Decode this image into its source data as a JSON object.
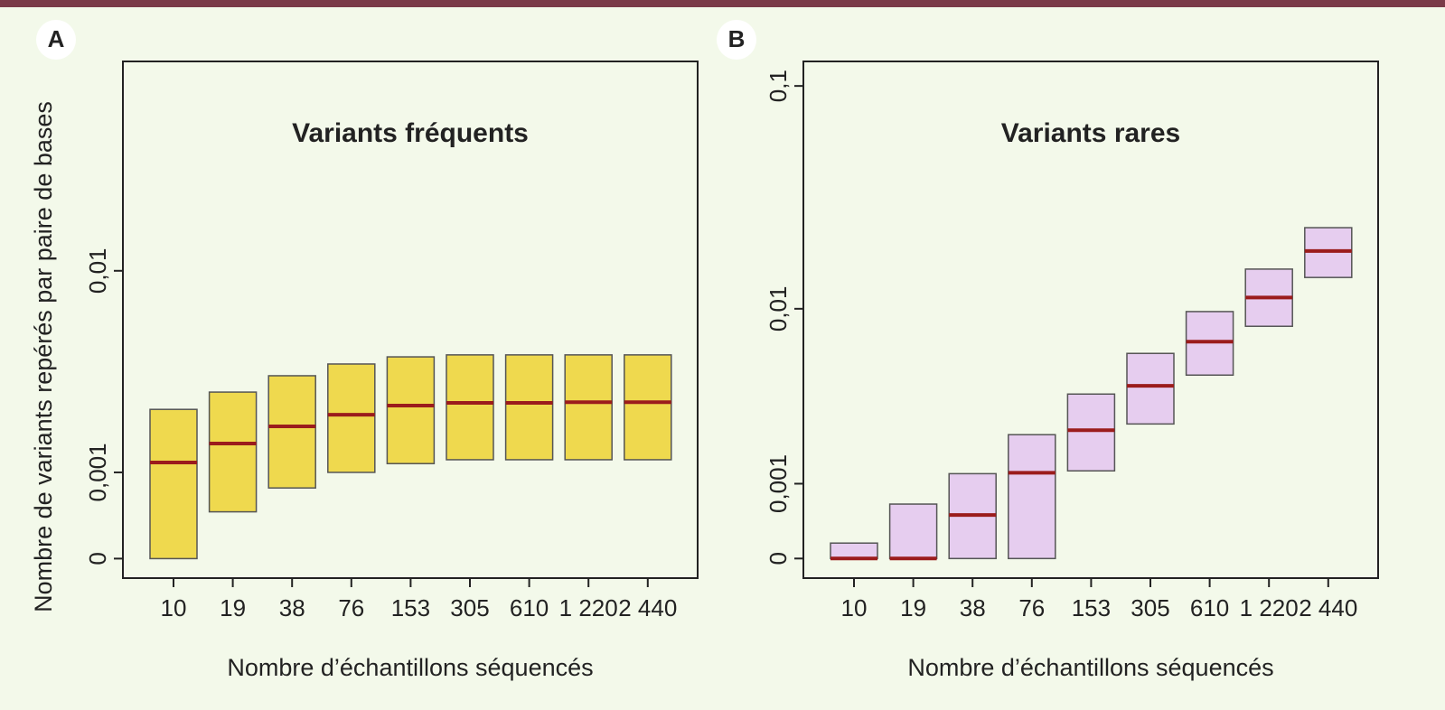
{
  "y_label": "Nombre de variants repérés par paire de bases",
  "chart_data": [
    {
      "type": "box",
      "panel": "A",
      "title": "Variants fréquents",
      "x_label": "Nombre d’échantillons séquencés",
      "categories": [
        "10",
        "19",
        "38",
        "76",
        "153",
        "305",
        "610",
        "1 220",
        "2 440"
      ],
      "low": [
        0,
        0.00045,
        0.00076,
        0.001,
        0.00115,
        0.00122,
        0.00122,
        0.00122,
        0.00122
      ],
      "median": [
        0.00117,
        0.00154,
        0.00193,
        0.00223,
        0.00249,
        0.00257,
        0.00257,
        0.00259,
        0.00259
      ],
      "high": [
        0.00238,
        0.00291,
        0.00349,
        0.00396,
        0.00427,
        0.00436,
        0.00436,
        0.00436,
        0.00436
      ],
      "color": "#efd94e",
      "median_color": "#9b1c1c",
      "ylim": [
        -0.00014,
        0.066
      ],
      "yticks": [
        0,
        {
          "value": 0.001,
          "label": "0,001"
        },
        {
          "value": 0.01,
          "label": "0,01"
        }
      ]
    },
    {
      "type": "box",
      "panel": "B",
      "title": "Variants rares",
      "x_label": "Nombre d’échantillons séquencés",
      "categories": [
        "10",
        "19",
        "38",
        "76",
        "153",
        "305",
        "610",
        "1 220",
        "2 440"
      ],
      "low": [
        0,
        0,
        0,
        0,
        0.00126,
        0.00255,
        0.00472,
        0.00825,
        0.014
      ],
      "median": [
        0,
        0,
        0.00049,
        0.00122,
        0.00234,
        0.00415,
        0.00695,
        0.0113,
        0.0185
      ],
      "high": [
        0.00015,
        0.00065,
        0.0012,
        0.0022,
        0.00375,
        0.00608,
        0.0097,
        0.0153,
        0.0236
      ],
      "color": "#e6cdef",
      "median_color": "#9b1c1c",
      "ylim": [
        -0.00016,
        0.128
      ],
      "yticks": [
        0,
        {
          "value": 0.001,
          "label": "0,001"
        },
        {
          "value": 0.01,
          "label": "0,01"
        },
        {
          "value": 0.1,
          "label": "0,1"
        }
      ]
    }
  ]
}
